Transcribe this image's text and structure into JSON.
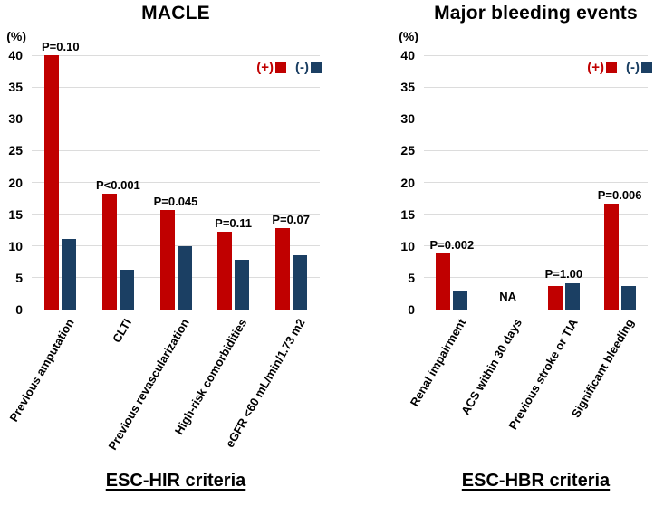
{
  "colors": {
    "positive": "#C00000",
    "negative": "#1B3F63",
    "gridline": "#DCDCDC",
    "background": "#FFFFFF",
    "text": "#000000"
  },
  "chart_data": [
    {
      "type": "bar",
      "title": "MACLE",
      "y_axis_unit": "(%)",
      "x_axis_title": "ESC-HIR criteria",
      "ylim": [
        0,
        40
      ],
      "y_ticks": [
        0,
        5,
        10,
        15,
        20,
        25,
        30,
        35,
        40
      ],
      "grid": true,
      "legend_position": "top-right",
      "categories": [
        "Previous amputation",
        "CLTI",
        "Previous revascularization",
        "High-risk comorbidities",
        "eGFR <60 mL/min/1.73 m2"
      ],
      "series": [
        {
          "name": "(+)",
          "color_key": "positive",
          "values": [
            40.0,
            18.2,
            15.6,
            12.2,
            12.8
          ]
        },
        {
          "name": "(-)",
          "color_key": "negative",
          "values": [
            11.1,
            6.2,
            10.0,
            7.8,
            8.6
          ]
        }
      ],
      "p_values": [
        "P=0.10",
        "P<0.001",
        "P=0.045",
        "P=0.11",
        "P=0.07"
      ],
      "na_labels": [
        null,
        null,
        null,
        null,
        null
      ]
    },
    {
      "type": "bar",
      "title": "Major bleeding events",
      "y_axis_unit": "(%)",
      "x_axis_title": "ESC-HBR criteria",
      "ylim": [
        0,
        40
      ],
      "y_ticks": [
        0,
        5,
        10,
        15,
        20,
        25,
        30,
        35,
        40
      ],
      "grid": true,
      "legend_position": "top-right",
      "categories": [
        "Renal impairment",
        "ACS within 30 days",
        "Previous stroke or TIA",
        "Significant bleeding"
      ],
      "series": [
        {
          "name": "(+)",
          "color_key": "positive",
          "values": [
            8.8,
            null,
            3.7,
            16.6
          ]
        },
        {
          "name": "(-)",
          "color_key": "negative",
          "values": [
            2.9,
            null,
            4.2,
            3.7
          ]
        }
      ],
      "p_values": [
        "P=0.002",
        null,
        "P=1.00",
        "P=0.006"
      ],
      "na_labels": [
        null,
        "NA",
        null,
        null
      ]
    }
  ]
}
